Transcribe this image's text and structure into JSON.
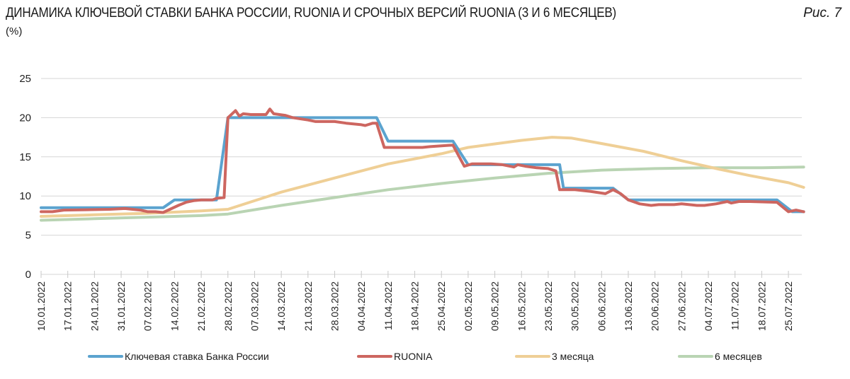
{
  "header": {
    "title": "ДИНАМИКА КЛЮЧЕВОЙ СТАВКИ БАНКА РОССИИ, RUONIA И СРОЧНЫХ ВЕРСИЙ RUONIA (3 И 6 МЕСЯЦЕВ)",
    "figure_label": "Рис. 7",
    "unit": "(%)"
  },
  "colors": {
    "key_rate": "#5ba3cf",
    "ruonia": "#cd6660",
    "m3": "#efcf96",
    "m6": "#b9d4b3",
    "grid": "#d6d6d6"
  },
  "chart_data": {
    "type": "line",
    "title": "ДИНАМИКА КЛЮЧЕВОЙ СТАВКИ БАНКА РОССИИ, RUONIA И СРОЧНЫХ ВЕРСИЙ RUONIA (3 И 6 МЕСЯЦЕВ)",
    "xlabel": "",
    "ylabel": "(%)",
    "ylim": [
      0,
      25
    ],
    "yticks": [
      0,
      5,
      10,
      15,
      20,
      25
    ],
    "grid": true,
    "legend_position": "bottom",
    "x_tick_labels": [
      "10.01.2022",
      "17.01.2022",
      "24.01.2022",
      "31.01.2022",
      "07.02.2022",
      "14.02.2022",
      "21.02.2022",
      "28.02.2022",
      "07.03.2022",
      "14.03.2022",
      "21.03.2022",
      "28.03.2022",
      "04.04.2022",
      "11.04.2022",
      "18.04.2022",
      "25.04.2022",
      "02.05.2022",
      "09.05.2022",
      "16.05.2022",
      "23.05.2022",
      "30.05.2022",
      "06.06.2022",
      "13.06.2022",
      "20.06.2022",
      "27.06.2022",
      "04.07.2022",
      "11.07.2022",
      "18.07.2022",
      "25.07.2022"
    ],
    "x_unit": "days since 10.01.2022",
    "series": [
      {
        "name": "Ключевая ставка Банка России",
        "key": "key_rate",
        "points": [
          [
            0,
            8.5
          ],
          [
            32,
            8.5
          ],
          [
            35,
            9.5
          ],
          [
            46,
            9.5
          ],
          [
            49,
            20
          ],
          [
            88,
            20
          ],
          [
            91,
            17
          ],
          [
            108,
            17
          ],
          [
            112,
            14
          ],
          [
            136,
            14
          ],
          [
            137,
            11
          ],
          [
            150,
            11
          ],
          [
            154,
            9.5
          ],
          [
            193,
            9.5
          ],
          [
            197,
            8
          ],
          [
            200,
            8
          ]
        ]
      },
      {
        "name": "RUONIA",
        "key": "ruonia",
        "points": [
          [
            0,
            8.0
          ],
          [
            3,
            8.0
          ],
          [
            6,
            8.2
          ],
          [
            12,
            8.25
          ],
          [
            18,
            8.3
          ],
          [
            22,
            8.4
          ],
          [
            26,
            8.2
          ],
          [
            28,
            8.0
          ],
          [
            30,
            8.0
          ],
          [
            32,
            7.9
          ],
          [
            36,
            8.8
          ],
          [
            38,
            9.2
          ],
          [
            40,
            9.4
          ],
          [
            42,
            9.5
          ],
          [
            45,
            9.5
          ],
          [
            46,
            9.7
          ],
          [
            48,
            9.8
          ],
          [
            49,
            20.0
          ],
          [
            51,
            20.9
          ],
          [
            52,
            20.2
          ],
          [
            53,
            20.5
          ],
          [
            55,
            20.4
          ],
          [
            59,
            20.4
          ],
          [
            60,
            21.1
          ],
          [
            61,
            20.5
          ],
          [
            64,
            20.3
          ],
          [
            66,
            20.0
          ],
          [
            70,
            19.7
          ],
          [
            72,
            19.5
          ],
          [
            77,
            19.5
          ],
          [
            80,
            19.3
          ],
          [
            84,
            19.1
          ],
          [
            85,
            19.0
          ],
          [
            87,
            19.3
          ],
          [
            88,
            19.3
          ],
          [
            90,
            16.2
          ],
          [
            95,
            16.2
          ],
          [
            100,
            16.2
          ],
          [
            102,
            16.3
          ],
          [
            108,
            16.5
          ],
          [
            111,
            13.8
          ],
          [
            113,
            14.1
          ],
          [
            118,
            14.1
          ],
          [
            121,
            14.0
          ],
          [
            124,
            13.7
          ],
          [
            125,
            14.0
          ],
          [
            127,
            13.8
          ],
          [
            130,
            13.6
          ],
          [
            133,
            13.5
          ],
          [
            135,
            13.2
          ],
          [
            136,
            10.8
          ],
          [
            140,
            10.8
          ],
          [
            144,
            10.6
          ],
          [
            148,
            10.3
          ],
          [
            150,
            10.8
          ],
          [
            152,
            10.3
          ],
          [
            154,
            9.5
          ],
          [
            157,
            9.0
          ],
          [
            160,
            8.8
          ],
          [
            162,
            8.9
          ],
          [
            166,
            8.9
          ],
          [
            168,
            9.0
          ],
          [
            172,
            8.8
          ],
          [
            174,
            8.8
          ],
          [
            177,
            9.0
          ],
          [
            180,
            9.3
          ],
          [
            181,
            9.1
          ],
          [
            183,
            9.3
          ],
          [
            186,
            9.3
          ],
          [
            193,
            9.2
          ],
          [
            196,
            8.0
          ],
          [
            198,
            8.2
          ],
          [
            200,
            8.0
          ]
        ]
      },
      {
        "name": "3 месяца",
        "key": "m3",
        "points": [
          [
            0,
            7.4
          ],
          [
            14,
            7.6
          ],
          [
            28,
            7.8
          ],
          [
            42,
            8.1
          ],
          [
            49,
            8.3
          ],
          [
            63,
            10.5
          ],
          [
            77,
            12.3
          ],
          [
            91,
            14.1
          ],
          [
            105,
            15.4
          ],
          [
            112,
            16.2
          ],
          [
            126,
            17.1
          ],
          [
            134,
            17.5
          ],
          [
            139,
            17.4
          ],
          [
            147,
            16.7
          ],
          [
            158,
            15.7
          ],
          [
            168,
            14.5
          ],
          [
            178,
            13.4
          ],
          [
            186,
            12.6
          ],
          [
            196,
            11.7
          ],
          [
            200,
            11.1
          ]
        ]
      },
      {
        "name": "6 месяцев",
        "key": "m6",
        "points": [
          [
            0,
            6.9
          ],
          [
            14,
            7.1
          ],
          [
            28,
            7.3
          ],
          [
            42,
            7.5
          ],
          [
            49,
            7.7
          ],
          [
            63,
            8.8
          ],
          [
            77,
            9.8
          ],
          [
            91,
            10.8
          ],
          [
            105,
            11.6
          ],
          [
            119,
            12.3
          ],
          [
            133,
            12.9
          ],
          [
            147,
            13.3
          ],
          [
            161,
            13.5
          ],
          [
            175,
            13.6
          ],
          [
            189,
            13.6
          ],
          [
            200,
            13.7
          ]
        ]
      }
    ]
  },
  "legend": {
    "items": [
      {
        "label": "Ключевая ставка Банка России",
        "key": "key_rate"
      },
      {
        "label": "RUONIA",
        "key": "ruonia"
      },
      {
        "label": "3 месяца",
        "key": "m3"
      },
      {
        "label": "6 месяцев",
        "key": "m6"
      }
    ]
  }
}
